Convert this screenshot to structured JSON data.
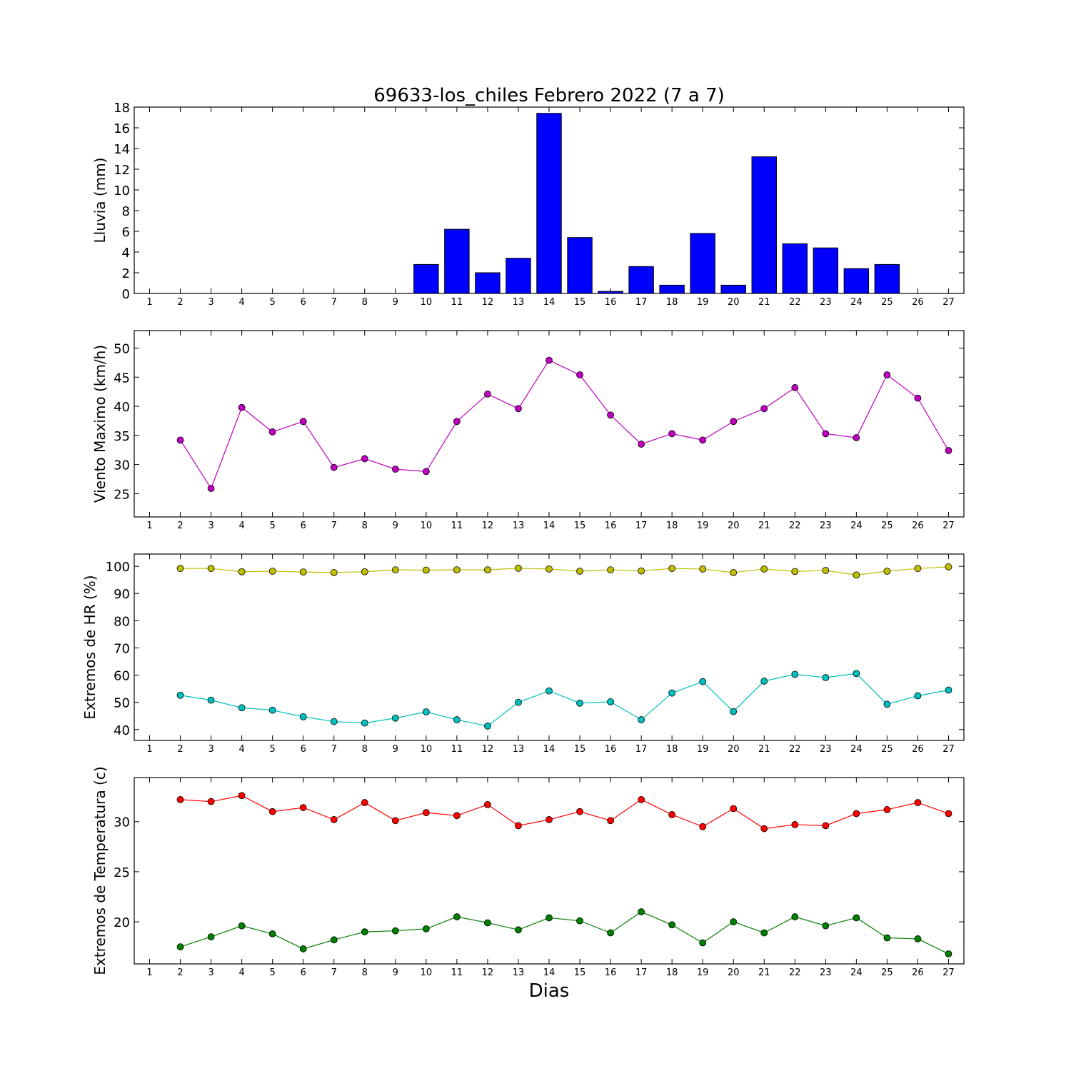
{
  "chart_data": [
    {
      "type": "bar",
      "title": "69633-los_chiles Febrero 2022  (7 a 7)",
      "ylabel": "Lluvia (mm)",
      "xlabel": "",
      "xlim": [
        0.5,
        27.5
      ],
      "ylim": [
        0,
        18
      ],
      "yticks": [
        0,
        2,
        4,
        6,
        8,
        10,
        12,
        14,
        16,
        18
      ],
      "x": [
        1,
        2,
        3,
        4,
        5,
        6,
        7,
        8,
        9,
        10,
        11,
        12,
        13,
        14,
        15,
        16,
        17,
        18,
        19,
        20,
        21,
        22,
        23,
        24,
        25,
        26,
        27
      ],
      "values": [
        0,
        0,
        0,
        0,
        0,
        0,
        0,
        0,
        0,
        2.8,
        6.2,
        2.0,
        3.4,
        17.4,
        5.4,
        0.2,
        2.6,
        0.8,
        5.8,
        0.8,
        13.2,
        4.8,
        4.4,
        2.4,
        2.8,
        0,
        0
      ],
      "color": "#0000ff"
    },
    {
      "type": "line",
      "title": "",
      "ylabel": "Viento Maximo (km/h)",
      "xlabel": "",
      "xlim": [
        0.5,
        27.5
      ],
      "ylim": [
        21,
        53
      ],
      "yticks": [
        25,
        30,
        35,
        40,
        45,
        50
      ],
      "x": [
        2,
        3,
        4,
        5,
        6,
        7,
        8,
        9,
        10,
        11,
        12,
        13,
        14,
        15,
        16,
        17,
        18,
        19,
        20,
        21,
        22,
        23,
        24,
        25,
        26,
        27
      ],
      "series": [
        {
          "values": [
            34.2,
            25.9,
            39.8,
            35.6,
            37.4,
            29.5,
            31.0,
            29.2,
            28.8,
            37.4,
            42.1,
            39.6,
            47.9,
            45.4,
            38.5,
            33.5,
            35.3,
            34.2,
            37.4,
            39.6,
            43.2,
            35.3,
            34.6,
            45.4,
            41.4,
            32.4
          ],
          "color": "#bf00bf"
        }
      ]
    },
    {
      "type": "line",
      "title": "",
      "ylabel": "Extremos de HR (%)",
      "xlabel": "",
      "xlim": [
        0.5,
        27.5
      ],
      "ylim": [
        36,
        104.5
      ],
      "yticks": [
        40,
        50,
        60,
        70,
        80,
        90,
        100
      ],
      "x": [
        2,
        3,
        4,
        5,
        6,
        7,
        8,
        9,
        10,
        11,
        12,
        13,
        14,
        15,
        16,
        17,
        18,
        19,
        20,
        21,
        22,
        23,
        24,
        25,
        26,
        27
      ],
      "series": [
        {
          "values": [
            99.2,
            99.2,
            98.0,
            98.2,
            97.9,
            97.7,
            98.0,
            98.7,
            98.6,
            98.7,
            98.7,
            99.3,
            99.0,
            98.2,
            98.7,
            98.3,
            99.2,
            99.0,
            97.7,
            99.0,
            98.1,
            98.5,
            96.8,
            98.2,
            99.2,
            99.8
          ],
          "color": "#bfbf00"
        },
        {
          "values": [
            52.6,
            50.8,
            48.0,
            47.1,
            44.7,
            42.9,
            42.4,
            44.2,
            46.5,
            43.6,
            41.3,
            50.0,
            54.2,
            49.7,
            50.2,
            43.6,
            53.4,
            57.6,
            46.6,
            57.8,
            60.3,
            59.1,
            60.6,
            49.3,
            52.4,
            54.5
          ],
          "color": "#00bfbf"
        }
      ]
    },
    {
      "type": "line",
      "title": "",
      "ylabel": "Extremos de Temperatura (c)",
      "xlabel": "Dias",
      "xlim": [
        0.5,
        27.5
      ],
      "ylim": [
        15.8,
        34.4
      ],
      "yticks": [
        20,
        25,
        30
      ],
      "x": [
        2,
        3,
        4,
        5,
        6,
        7,
        8,
        9,
        10,
        11,
        12,
        13,
        14,
        15,
        16,
        17,
        18,
        19,
        20,
        21,
        22,
        23,
        24,
        25,
        26,
        27
      ],
      "series": [
        {
          "values": [
            32.2,
            32.0,
            32.6,
            31.0,
            31.4,
            30.2,
            31.9,
            30.1,
            30.9,
            30.6,
            31.7,
            29.6,
            30.2,
            31.0,
            30.1,
            32.2,
            30.7,
            29.5,
            31.3,
            29.3,
            29.7,
            29.6,
            30.8,
            31.2,
            31.9,
            30.8
          ],
          "color": "#ff0000"
        },
        {
          "values": [
            17.5,
            18.5,
            19.6,
            18.8,
            17.3,
            18.2,
            19.0,
            19.1,
            19.3,
            20.5,
            19.9,
            19.2,
            20.4,
            20.1,
            18.9,
            21.0,
            19.7,
            17.9,
            20.0,
            18.9,
            20.5,
            19.6,
            20.4,
            18.4,
            18.3,
            16.8
          ],
          "color": "#008000"
        }
      ]
    }
  ]
}
